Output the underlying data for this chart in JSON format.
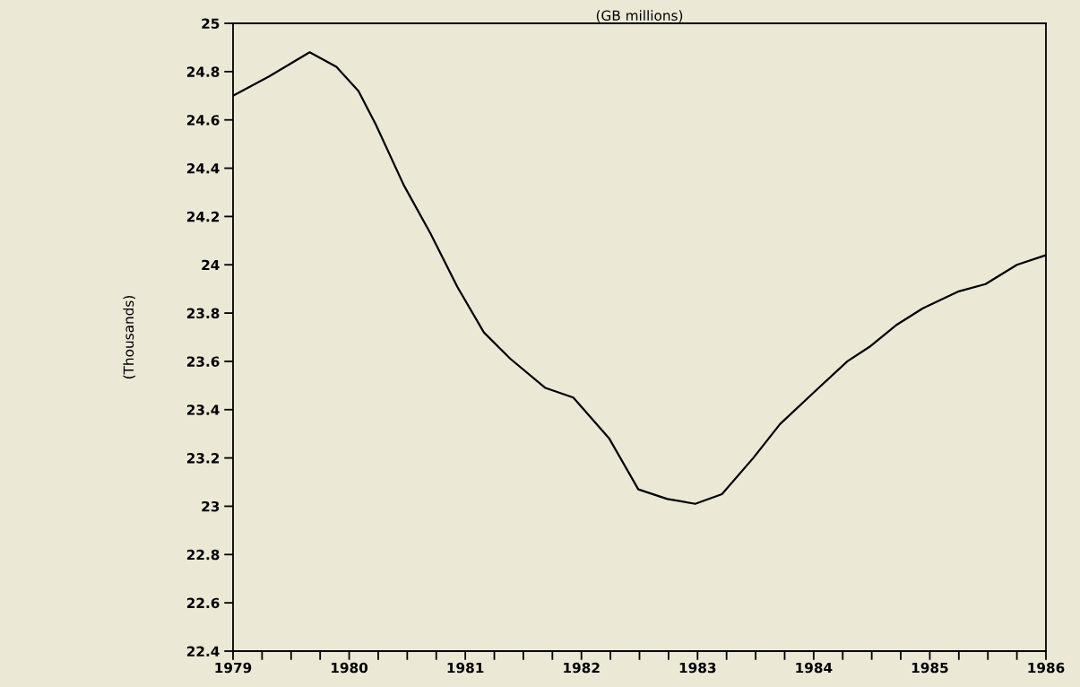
{
  "chart_data": {
    "type": "line",
    "title": "(GB millions)",
    "ylabel": "(Thousands)",
    "x": [
      1979.0,
      1979.31,
      1979.66,
      1979.89,
      1980.08,
      1980.23,
      1980.47,
      1980.7,
      1980.93,
      1981.16,
      1981.39,
      1981.69,
      1981.93,
      1982.24,
      1982.49,
      1982.74,
      1982.98,
      1983.21,
      1983.48,
      1983.71,
      1984.02,
      1984.29,
      1984.48,
      1984.71,
      1984.94,
      1985.25,
      1985.48,
      1985.75,
      1986.0
    ],
    "series": [
      {
        "color": "#000000",
        "values": [
          24.7,
          24.78,
          24.88,
          24.82,
          24.72,
          24.58,
          24.33,
          24.13,
          23.91,
          23.72,
          23.61,
          23.49,
          23.45,
          23.28,
          23.07,
          23.03,
          23.01,
          23.05,
          23.2,
          23.34,
          23.48,
          23.6,
          23.66,
          23.75,
          23.82,
          23.89,
          23.92,
          24.0,
          24.04
        ]
      }
    ],
    "xlim": [
      1979,
      1986
    ],
    "xticks": [
      1979,
      {
        "value": 1979.25,
        "label": null
      },
      {
        "value": 1979.5,
        "label": null
      },
      {
        "value": 1979.75,
        "label": null
      },
      1980,
      {
        "value": 1980.25,
        "label": null
      },
      {
        "value": 1980.5,
        "label": null
      },
      {
        "value": 1980.75,
        "label": null
      },
      1981,
      {
        "value": 1981.25,
        "label": null
      },
      {
        "value": 1981.5,
        "label": null
      },
      {
        "value": 1981.75,
        "label": null
      },
      1982,
      {
        "value": 1982.25,
        "label": null
      },
      {
        "value": 1982.5,
        "label": null
      },
      {
        "value": 1982.75,
        "label": null
      },
      1983,
      {
        "value": 1983.25,
        "label": null
      },
      {
        "value": 1983.5,
        "label": null
      },
      {
        "value": 1983.75,
        "label": null
      },
      1984,
      {
        "value": 1984.25,
        "label": null
      },
      {
        "value": 1984.5,
        "label": null
      },
      {
        "value": 1984.75,
        "label": null
      },
      1985,
      {
        "value": 1985.25,
        "label": null
      },
      {
        "value": 1985.5,
        "label": null
      },
      {
        "value": 1985.75,
        "label": null
      },
      1986
    ],
    "ylim": [
      22.4,
      25
    ],
    "yticks": [
      22.4,
      22.6,
      22.8,
      23,
      23.2,
      23.4,
      23.6,
      23.8,
      24,
      24.2,
      24.4,
      24.6,
      24.8,
      25
    ],
    "grid": false,
    "legend": false,
    "marker": "none",
    "line_style": "solid"
  }
}
